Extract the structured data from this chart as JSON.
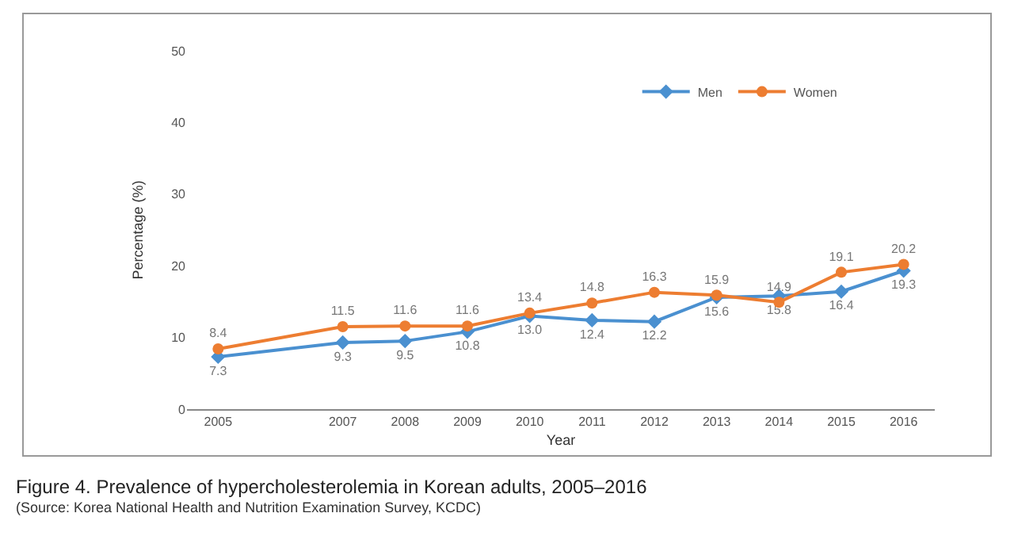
{
  "chart_data": {
    "type": "line",
    "xlabel": "Year",
    "ylabel": "Percentage (%)",
    "x": [
      2005,
      2007,
      2008,
      2009,
      2010,
      2011,
      2012,
      2013,
      2014,
      2015,
      2016
    ],
    "xlim": [
      2004.5,
      2016.5
    ],
    "xticks": [
      2005,
      2007,
      2008,
      2009,
      2010,
      2011,
      2012,
      2013,
      2014,
      2015,
      2016
    ],
    "ylim": [
      0,
      50
    ],
    "yticks": [
      0,
      10,
      20,
      30,
      40,
      50
    ],
    "series": [
      {
        "name": "Men",
        "color": "#4a90d0",
        "marker": "diamond",
        "values": [
          7.3,
          9.3,
          9.5,
          10.8,
          13.0,
          12.4,
          12.2,
          15.6,
          15.8,
          16.4,
          19.3
        ],
        "value_labels": [
          "7.3",
          "9.3",
          "9.5",
          "10.8",
          "13.0",
          "12.4",
          "12.2",
          "15.6",
          "15.8",
          "16.4",
          "19.3"
        ]
      },
      {
        "name": "Women",
        "color": "#ed7d31",
        "marker": "circle",
        "values": [
          8.4,
          11.5,
          11.6,
          11.6,
          13.4,
          14.8,
          16.3,
          15.9,
          14.9,
          19.1,
          20.2
        ],
        "value_labels": [
          "8.4",
          "11.5",
          "11.6",
          "11.6",
          "13.4",
          "14.8",
          "16.3",
          "15.9",
          "14.9",
          "19.1",
          "20.2"
        ]
      }
    ],
    "grid": false,
    "legend": "top right",
    "annotations": [
      "Figure 4. Prevalence of hypercholesterolemia in Korean adults, 2005–2016",
      "(Source: Korea National Health and Nutrition Examination Survey, KCDC)"
    ]
  }
}
